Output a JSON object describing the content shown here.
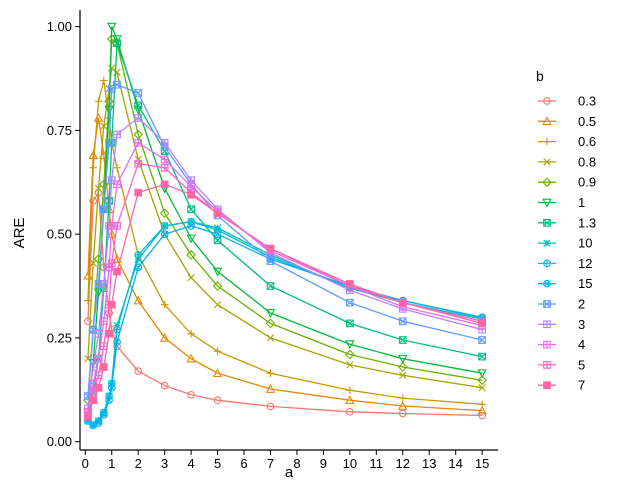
{
  "chart_data": {
    "type": "line",
    "xlabel": "a",
    "ylabel": "ARE",
    "xlim": [
      -0.2,
      15.6
    ],
    "ylim": [
      -0.02,
      1.04
    ],
    "x_ticks": [
      0,
      1,
      2,
      3,
      4,
      5,
      6,
      7,
      8,
      9,
      10,
      11,
      12,
      13,
      14,
      15
    ],
    "x_tick_labels": [
      "0",
      "1",
      "2",
      "3",
      "4",
      "5",
      "6",
      "7",
      "8",
      "9",
      "10",
      "11",
      "12",
      "13",
      "14",
      "15"
    ],
    "y_ticks": [
      0,
      0.25,
      0.5,
      0.75,
      1
    ],
    "y_tick_labels": [
      "0.00",
      "0.25",
      "0.50",
      "0.75",
      "1.00"
    ],
    "x": [
      0.1,
      0.3,
      0.5,
      0.7,
      0.9,
      1,
      1.2,
      2,
      3,
      4,
      5,
      7,
      10,
      12,
      15
    ],
    "legend_title": "b",
    "series": [
      {
        "name": "0.3",
        "color": "#F8766D",
        "marker": "circle",
        "values": [
          0.29,
          0.58,
          0.6,
          0.42,
          0.31,
          0.27,
          0.23,
          0.17,
          0.135,
          0.113,
          0.1,
          0.085,
          0.072,
          0.068,
          0.063
        ]
      },
      {
        "name": "0.5",
        "color": "#E58700",
        "marker": "triangle",
        "values": [
          0.4,
          0.69,
          0.78,
          0.69,
          0.56,
          0.5,
          0.44,
          0.34,
          0.25,
          0.2,
          0.165,
          0.127,
          0.1,
          0.086,
          0.075
        ]
      },
      {
        "name": "0.6",
        "color": "#C99800",
        "marker": "plus",
        "values": [
          0.34,
          0.66,
          0.82,
          0.87,
          0.78,
          0.72,
          0.66,
          0.45,
          0.33,
          0.26,
          0.218,
          0.165,
          0.124,
          0.105,
          0.09
        ]
      },
      {
        "name": "0.8",
        "color": "#A3A500",
        "marker": "cross",
        "values": [
          0.2,
          0.43,
          0.61,
          0.76,
          0.85,
          0.9,
          0.89,
          0.68,
          0.5,
          0.395,
          0.33,
          0.25,
          0.185,
          0.16,
          0.13
        ]
      },
      {
        "name": "0.9",
        "color": "#6BB100",
        "marker": "diamond",
        "values": [
          0.1,
          0.27,
          0.44,
          0.62,
          0.82,
          0.97,
          0.96,
          0.74,
          0.55,
          0.45,
          0.375,
          0.285,
          0.21,
          0.18,
          0.148
        ]
      },
      {
        "name": "1",
        "color": "#00BA38",
        "marker": "triangle-down",
        "values": [
          0.07,
          0.19,
          0.36,
          0.56,
          0.8,
          1.0,
          0.97,
          0.8,
          0.61,
          0.49,
          0.41,
          0.31,
          0.235,
          0.2,
          0.165
        ]
      },
      {
        "name": "1.3",
        "color": "#00BF7D",
        "marker": "square-x",
        "values": [
          0.06,
          0.12,
          0.2,
          0.37,
          0.58,
          0.72,
          0.96,
          0.81,
          0.7,
          0.56,
          0.485,
          0.375,
          0.285,
          0.245,
          0.205
        ]
      },
      {
        "name": "10",
        "color": "#00C0AF",
        "marker": "star",
        "values": [
          0.05,
          0.04,
          0.05,
          0.07,
          0.11,
          0.14,
          0.28,
          0.44,
          0.52,
          0.53,
          0.515,
          0.45,
          0.37,
          0.335,
          0.295
        ]
      },
      {
        "name": "12",
        "color": "#00BCD8",
        "marker": "circle-plus",
        "values": [
          0.05,
          0.04,
          0.05,
          0.07,
          0.11,
          0.14,
          0.27,
          0.45,
          0.52,
          0.53,
          0.51,
          0.445,
          0.37,
          0.34,
          0.3
        ]
      },
      {
        "name": "15",
        "color": "#00B0F6",
        "marker": "circle-cross",
        "values": [
          0.05,
          0.04,
          0.045,
          0.065,
          0.1,
          0.13,
          0.24,
          0.42,
          0.5,
          0.52,
          0.5,
          0.44,
          0.375,
          0.34,
          0.298
        ]
      },
      {
        "name": "2",
        "color": "#619CFF",
        "marker": "square-cross",
        "values": [
          0.11,
          0.27,
          0.38,
          0.56,
          0.72,
          0.85,
          0.86,
          0.84,
          0.71,
          0.62,
          0.545,
          0.435,
          0.335,
          0.29,
          0.245
        ]
      },
      {
        "name": "3",
        "color": "#B983FF",
        "marker": "square-plus",
        "values": [
          0.08,
          0.18,
          0.26,
          0.38,
          0.52,
          0.63,
          0.74,
          0.78,
          0.72,
          0.63,
          0.56,
          0.455,
          0.365,
          0.32,
          0.27
        ]
      },
      {
        "name": "4",
        "color": "#E76BF3",
        "marker": "square-plus",
        "values": [
          0.07,
          0.14,
          0.2,
          0.29,
          0.42,
          0.52,
          0.62,
          0.72,
          0.68,
          0.615,
          0.555,
          0.46,
          0.375,
          0.325,
          0.28
        ]
      },
      {
        "name": "5",
        "color": "#FD61D1",
        "marker": "square-plus",
        "values": [
          0.07,
          0.12,
          0.16,
          0.23,
          0.33,
          0.43,
          0.52,
          0.67,
          0.66,
          0.6,
          0.55,
          0.465,
          0.375,
          0.335,
          0.29
        ]
      },
      {
        "name": "7",
        "color": "#FF67A4",
        "marker": "square-filled",
        "values": [
          0.06,
          0.1,
          0.13,
          0.18,
          0.26,
          0.33,
          0.41,
          0.6,
          0.62,
          0.595,
          0.55,
          0.465,
          0.38,
          0.335,
          0.285
        ]
      }
    ]
  }
}
